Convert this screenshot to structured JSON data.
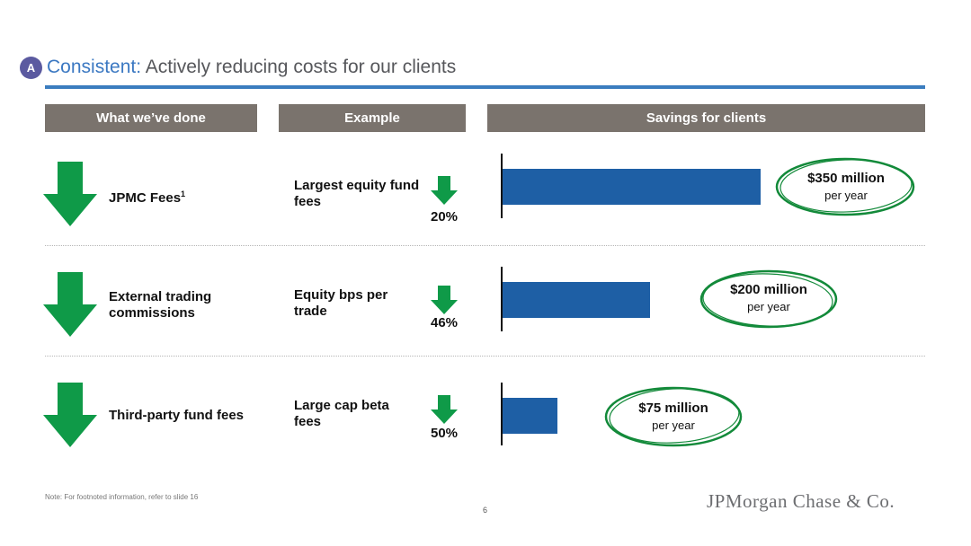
{
  "title": {
    "badge": "A",
    "accent": "Consistent:",
    "rest": " Actively reducing costs for our clients"
  },
  "headers": {
    "done": "What we’ve done",
    "example": "Example",
    "savings": "Savings for clients"
  },
  "rows": [
    {
      "done": "JPMC Fees",
      "done_sup": "1",
      "example": "Largest equity fund fees",
      "pct": "20%",
      "amount": "$350 million",
      "unit": "per year"
    },
    {
      "done": "External trading commissions",
      "done_sup": "",
      "example": "Equity bps per trade",
      "pct": "46%",
      "amount": "$200 million",
      "unit": "per year"
    },
    {
      "done": "Third-party fund fees",
      "done_sup": "",
      "example": "Large cap beta fees",
      "pct": "50%",
      "amount": "$75 million",
      "unit": "per year"
    }
  ],
  "chart_data": {
    "type": "bar",
    "orientation": "horizontal",
    "categories": [
      "JPMC Fees",
      "External trading commissions",
      "Third-party fund fees"
    ],
    "values": [
      350,
      200,
      75
    ],
    "value_labels": [
      "$350 million per year",
      "$200 million per year",
      "$75 million per year"
    ],
    "xlim": [
      0,
      540
    ],
    "grid": false
  },
  "colors": {
    "bar": "#1e5fa5",
    "arrow": "#0f9a48",
    "header": "#7a736d",
    "accent": "#3b78c2",
    "circle": "#138a3a"
  },
  "footnote": "Note: For footnoted information, refer to slide 16",
  "page_number": "6",
  "logo": "JPMorgan Chase & Co."
}
